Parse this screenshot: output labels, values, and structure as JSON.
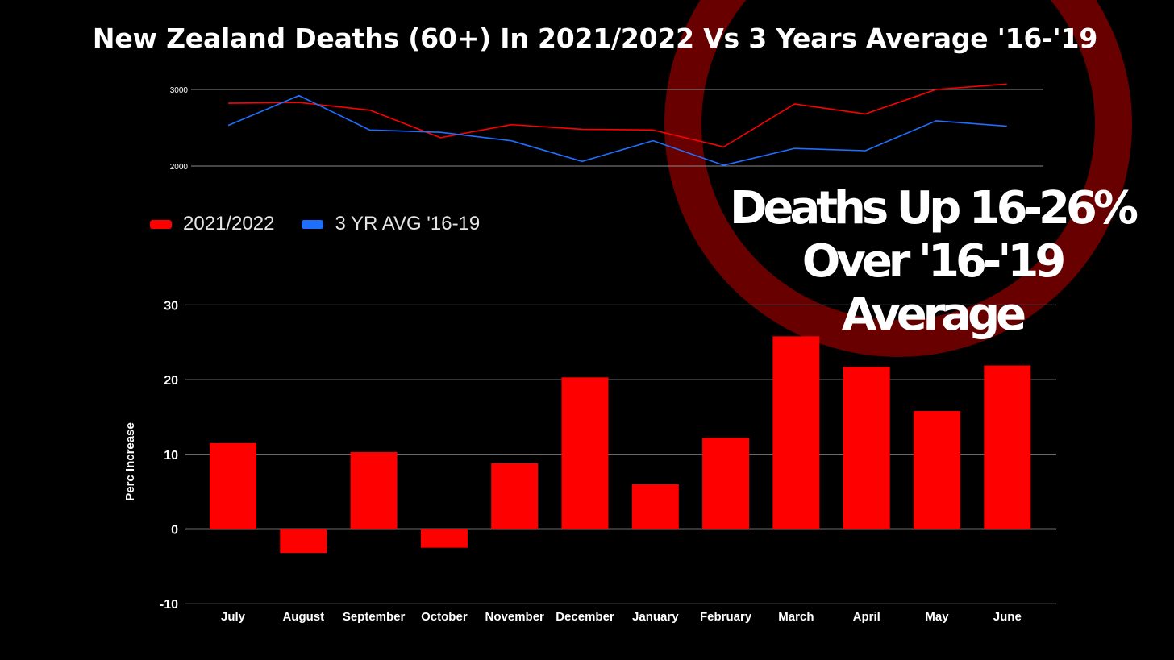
{
  "title": "New Zealand Deaths (60+) In 2021/2022 Vs 3 Years Average '16-'19",
  "callout": {
    "line1": "Deaths Up 16-26%",
    "line2": "Over '16-'19",
    "line3": "Average"
  },
  "colors": {
    "background": "#000000",
    "series_2021": "#ff0000",
    "series_avg": "#1f6fff",
    "bars": "#ff0000",
    "ring": "#680000",
    "grid": "#8a8a8a"
  },
  "chart_data": [
    {
      "type": "line",
      "categories": [
        "July",
        "August",
        "September",
        "October",
        "November",
        "December",
        "January",
        "February",
        "March",
        "April",
        "May",
        "June"
      ],
      "series": [
        {
          "name": "2021/2022",
          "color": "#ff0000",
          "values": [
            2820,
            2830,
            2730,
            2370,
            2540,
            2480,
            2470,
            2250,
            2810,
            2680,
            3000,
            3070
          ]
        },
        {
          "name": "3 YR AVG '16-19",
          "color": "#1f6fff",
          "values": [
            2530,
            2920,
            2470,
            2440,
            2330,
            2060,
            2330,
            2010,
            2230,
            2200,
            2590,
            2520
          ]
        }
      ],
      "yticks": [
        "3000",
        "2000"
      ],
      "ylim": [
        2000,
        3000
      ],
      "grid": true,
      "legend": "bottom-left"
    },
    {
      "type": "bar",
      "categories": [
        "July",
        "August",
        "September",
        "October",
        "November",
        "December",
        "January",
        "February",
        "March",
        "April",
        "May",
        "June"
      ],
      "values": [
        11.5,
        -3.2,
        10.3,
        -2.5,
        8.8,
        20.3,
        6.0,
        12.2,
        25.8,
        21.7,
        15.8,
        21.9
      ],
      "ylabel": "Perc Increase",
      "yticks": [
        "30",
        "20",
        "10",
        "0",
        "-10"
      ],
      "ylim": [
        -10,
        30
      ],
      "grid": true
    }
  ]
}
